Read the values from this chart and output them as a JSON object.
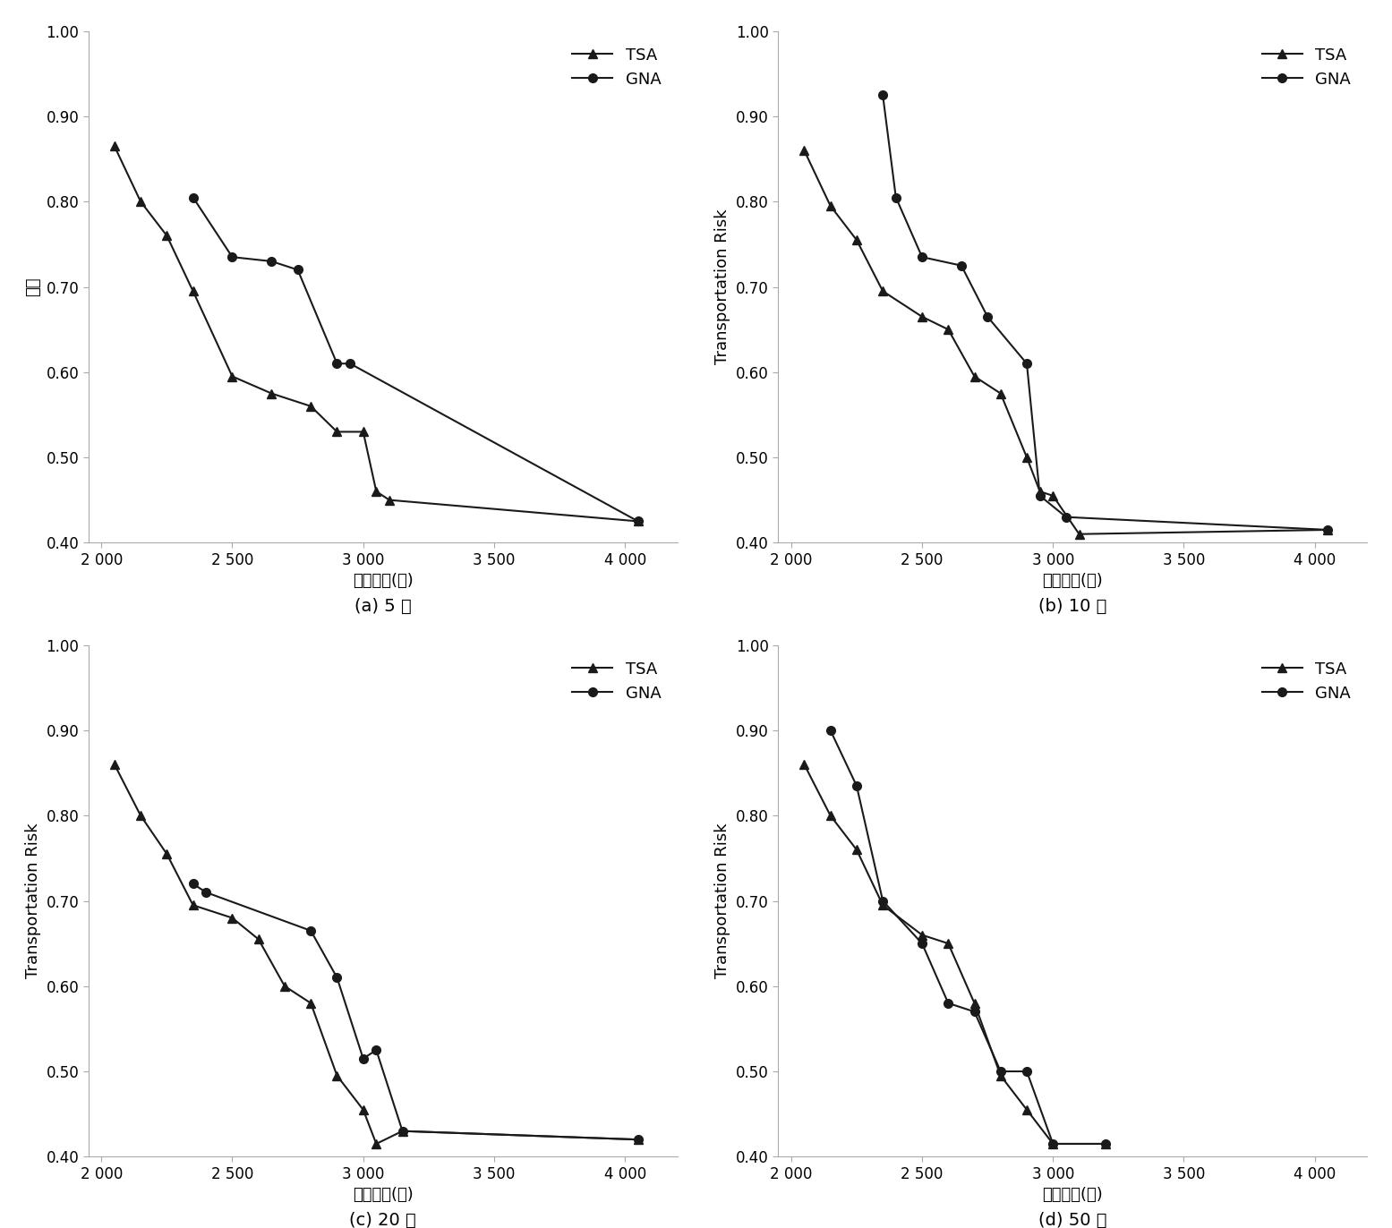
{
  "subplots": [
    {
      "title": "(a) 5 代",
      "ylabel": "风险",
      "xlabel": "运输成本(元)",
      "TSA_x": [
        2050,
        2150,
        2250,
        2350,
        2500,
        2650,
        2800,
        2900,
        3000,
        3050,
        3100,
        4050
      ],
      "TSA_y": [
        0.865,
        0.8,
        0.76,
        0.695,
        0.595,
        0.575,
        0.56,
        0.53,
        0.53,
        0.46,
        0.45,
        0.425
      ],
      "GNA_x": [
        2350,
        2500,
        2650,
        2750,
        2900,
        2950,
        4050
      ],
      "GNA_y": [
        0.805,
        0.735,
        0.73,
        0.72,
        0.61,
        0.61,
        0.425
      ]
    },
    {
      "title": "(b) 10 代",
      "ylabel": "Transportation Risk",
      "xlabel": "运输成本(元)",
      "TSA_x": [
        2050,
        2150,
        2250,
        2350,
        2500,
        2600,
        2700,
        2800,
        2900,
        2950,
        3000,
        3100,
        4050
      ],
      "TSA_y": [
        0.86,
        0.795,
        0.755,
        0.695,
        0.665,
        0.65,
        0.595,
        0.575,
        0.5,
        0.46,
        0.455,
        0.41,
        0.415
      ],
      "GNA_x": [
        2350,
        2400,
        2500,
        2650,
        2750,
        2900,
        2950,
        3050,
        4050
      ],
      "GNA_y": [
        0.925,
        0.805,
        0.735,
        0.725,
        0.665,
        0.61,
        0.455,
        0.43,
        0.415
      ]
    },
    {
      "title": "(c) 20 代",
      "ylabel": "Transportation Risk",
      "xlabel": "运输成本(元)",
      "TSA_x": [
        2050,
        2150,
        2250,
        2350,
        2500,
        2600,
        2700,
        2800,
        2900,
        3000,
        3050,
        3150,
        4050
      ],
      "TSA_y": [
        0.86,
        0.8,
        0.755,
        0.695,
        0.68,
        0.655,
        0.6,
        0.58,
        0.495,
        0.455,
        0.415,
        0.43,
        0.42
      ],
      "GNA_x": [
        2350,
        2400,
        2800,
        2900,
        3000,
        3050,
        3150,
        4050
      ],
      "GNA_y": [
        0.72,
        0.71,
        0.665,
        0.61,
        0.515,
        0.525,
        0.43,
        0.42
      ]
    },
    {
      "title": "(d) 50 代",
      "ylabel": "Transportation Risk",
      "xlabel": "运输成本(元)",
      "TSA_x": [
        2050,
        2150,
        2250,
        2350,
        2500,
        2600,
        2700,
        2800,
        2900,
        3000,
        3200
      ],
      "TSA_y": [
        0.86,
        0.8,
        0.76,
        0.695,
        0.66,
        0.65,
        0.58,
        0.495,
        0.455,
        0.415,
        0.415
      ],
      "GNA_x": [
        2150,
        2250,
        2350,
        2500,
        2600,
        2700,
        2800,
        2900,
        3000,
        3200
      ],
      "GNA_y": [
        0.9,
        0.835,
        0.7,
        0.65,
        0.58,
        0.57,
        0.5,
        0.5,
        0.415,
        0.415
      ]
    }
  ],
  "xlim": [
    1950,
    4200
  ],
  "ylim": [
    0.4,
    1.0
  ],
  "xticks": [
    2000,
    2500,
    3000,
    3500,
    4000
  ],
  "yticks": [
    0.4,
    0.5,
    0.6,
    0.7,
    0.8,
    0.9,
    1.0
  ],
  "xtick_labels": [
    "2 000",
    "2 500",
    "3 000",
    "3 500",
    "4 000"
  ],
  "ytick_labels": [
    "0.40",
    "0.50",
    "0.60",
    "0.70",
    "0.80",
    "0.90",
    "1.00"
  ],
  "line_color": "#1a1a1a",
  "TSA_marker": "^",
  "GNA_marker": "o",
  "marker_size": 7,
  "line_width": 1.5,
  "font_size_label": 13,
  "font_size_tick": 12,
  "font_size_legend": 13,
  "font_size_title": 14,
  "background_color": "#ffffff",
  "subplot_titles": [
    "(a) 5 代",
    "(b) 10 代",
    "(c) 20 代",
    "(d) 50 代"
  ]
}
